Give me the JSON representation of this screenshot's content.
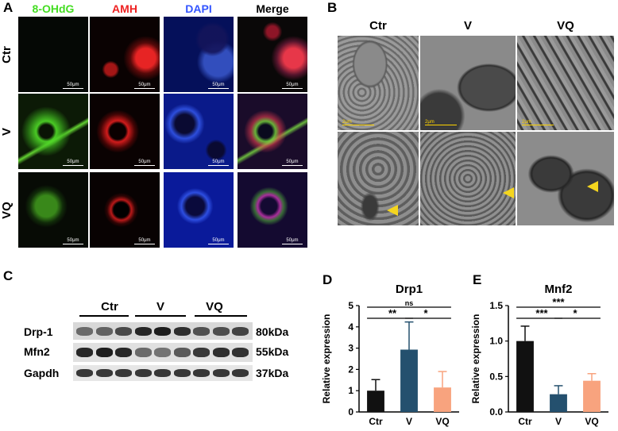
{
  "panels": {
    "a": "A",
    "b": "B",
    "c": "C",
    "d": "D",
    "e": "E"
  },
  "panel_a": {
    "columns": [
      "8-OHdG",
      "AMH",
      "DAPI",
      "Merge"
    ],
    "column_colors": [
      "#44dd22",
      "#ee2222",
      "#3355ff",
      "#000000"
    ],
    "rows": [
      "Ctr",
      "V",
      "VQ"
    ],
    "scale_label": "50μm"
  },
  "panel_b": {
    "columns": [
      "Ctr",
      "V",
      "VQ"
    ],
    "scale_label": "2μm"
  },
  "panel_c": {
    "groups": [
      "Ctr",
      "V",
      "VQ"
    ],
    "proteins": [
      "Drp-1",
      "Mfn2",
      "Gapdh"
    ],
    "sizes": [
      "80kDa",
      "55kDa",
      "37kDa"
    ]
  },
  "chart_data": [
    {
      "type": "bar",
      "title": "Drp1",
      "ylabel": "Relative expression",
      "categories": [
        "Ctr",
        "V",
        "VQ"
      ],
      "values": [
        1.0,
        2.93,
        1.15
      ],
      "errors": [
        0.52,
        1.3,
        0.75
      ],
      "colors": [
        "#111111",
        "#24506e",
        "#f8a37e"
      ],
      "ylim": [
        0,
        5
      ],
      "yticks": [
        "0",
        "1",
        "2",
        "3",
        "4",
        "5"
      ],
      "significance": [
        {
          "from": 0,
          "to": 2,
          "label": "ns"
        },
        {
          "from": 0,
          "to": 1,
          "label": "**"
        },
        {
          "from": 1,
          "to": 2,
          "label": "*"
        }
      ]
    },
    {
      "type": "bar",
      "title": "Mnf2",
      "ylabel": "Relative expression",
      "categories": [
        "Ctr",
        "V",
        "VQ"
      ],
      "values": [
        1.0,
        0.25,
        0.44
      ],
      "errors": [
        0.21,
        0.12,
        0.1
      ],
      "colors": [
        "#111111",
        "#24506e",
        "#f8a37e"
      ],
      "ylim": [
        0,
        1.5
      ],
      "yticks": [
        "0.0",
        "0.5",
        "1.0",
        "1.5"
      ],
      "significance": [
        {
          "from": 0,
          "to": 2,
          "label": "***"
        },
        {
          "from": 0,
          "to": 1,
          "label": "***"
        },
        {
          "from": 1,
          "to": 2,
          "label": "*"
        }
      ]
    }
  ]
}
